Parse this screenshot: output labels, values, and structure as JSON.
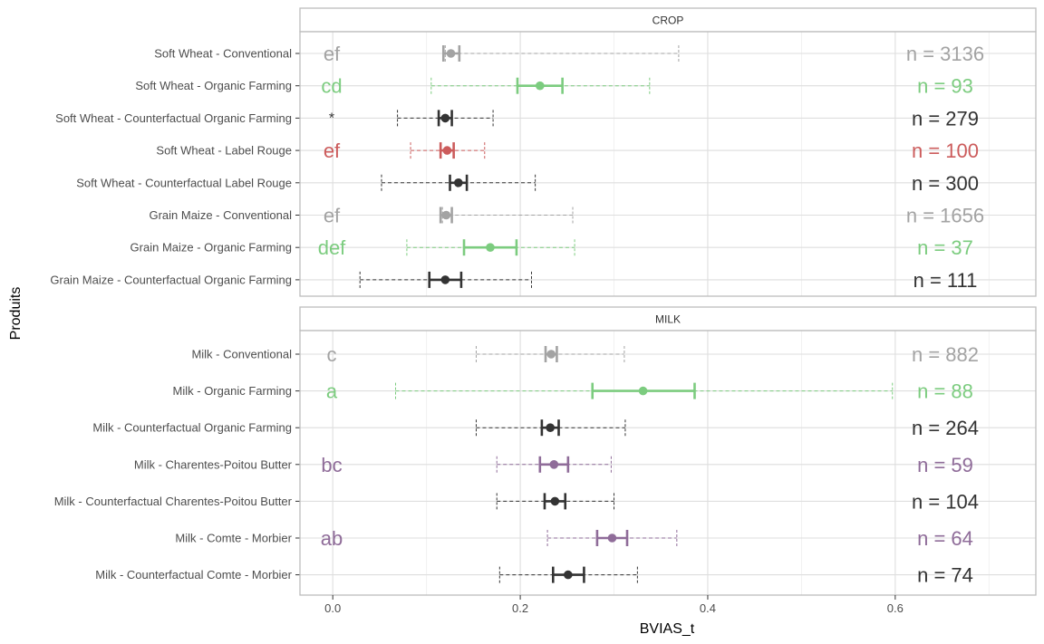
{
  "chart_data": {
    "type": "forest",
    "ylabel": "Produits",
    "xlabel": "BVIAS_t",
    "xlim": [
      -0.035,
      0.75
    ],
    "xticks": [
      0.0,
      0.2,
      0.4,
      0.6
    ],
    "xtick_labels": [
      "0.0",
      "0.2",
      "0.4",
      "0.6"
    ],
    "grid": true,
    "colors": {
      "gray": "#a3a3a3",
      "green": "#7ccc7f",
      "black": "#333333",
      "red": "#cc5c5c",
      "purple": "#8f6c99"
    },
    "panels": [
      {
        "title": "CROP",
        "rows": [
          {
            "label": "Soft Wheat - Conventional",
            "mean": 0.126,
            "ci_low": 0.118,
            "ci_high": 0.135,
            "lo": 0.12,
            "hi": 0.369,
            "letter": "ef",
            "n_label": "n = 3136",
            "color": "gray"
          },
          {
            "label": "Soft Wheat - Organic Farming",
            "mean": 0.221,
            "ci_low": 0.197,
            "ci_high": 0.245,
            "lo": 0.105,
            "hi": 0.338,
            "letter": "cd",
            "n_label": "n = 93",
            "color": "green"
          },
          {
            "label": "Soft Wheat - Counterfactual Organic Farming",
            "mean": 0.12,
            "ci_low": 0.113,
            "ci_high": 0.127,
            "lo": 0.069,
            "hi": 0.171,
            "letter": "*",
            "n_label": "n = 279",
            "color": "black"
          },
          {
            "label": "Soft Wheat - Label Rouge",
            "mean": 0.122,
            "ci_low": 0.115,
            "ci_high": 0.129,
            "lo": 0.083,
            "hi": 0.162,
            "letter": "ef",
            "n_label": "n = 100",
            "color": "red"
          },
          {
            "label": "Soft Wheat - Counterfactual Label Rouge",
            "mean": 0.134,
            "ci_low": 0.125,
            "ci_high": 0.143,
            "lo": 0.052,
            "hi": 0.216,
            "letter": "",
            "n_label": "n = 300",
            "color": "black"
          },
          {
            "label": "Grain Maize - Conventional",
            "mean": 0.121,
            "ci_low": 0.115,
            "ci_high": 0.127,
            "lo": 0.117,
            "hi": 0.256,
            "letter": "ef",
            "n_label": "n = 1656",
            "color": "gray"
          },
          {
            "label": "Grain Maize - Organic Farming",
            "mean": 0.168,
            "ci_low": 0.14,
            "ci_high": 0.196,
            "lo": 0.079,
            "hi": 0.258,
            "letter": "def",
            "n_label": "n = 37",
            "color": "green"
          },
          {
            "label": "Grain Maize - Counterfactual Organic Farming",
            "mean": 0.12,
            "ci_low": 0.103,
            "ci_high": 0.137,
            "lo": 0.029,
            "hi": 0.212,
            "letter": "",
            "n_label": "n = 111",
            "color": "black"
          }
        ]
      },
      {
        "title": "MILK",
        "rows": [
          {
            "label": "Milk - Conventional",
            "mean": 0.233,
            "ci_low": 0.227,
            "ci_high": 0.239,
            "lo": 0.153,
            "hi": 0.311,
            "letter": "c",
            "n_label": "n = 882",
            "color": "gray"
          },
          {
            "label": "Milk - Organic Farming",
            "mean": 0.331,
            "ci_low": 0.277,
            "ci_high": 0.386,
            "lo": 0.067,
            "hi": 0.597,
            "letter": "a",
            "n_label": "n = 88",
            "color": "green"
          },
          {
            "label": "Milk - Counterfactual Organic Farming",
            "mean": 0.232,
            "ci_low": 0.223,
            "ci_high": 0.241,
            "lo": 0.153,
            "hi": 0.312,
            "letter": "",
            "n_label": "n = 264",
            "color": "black"
          },
          {
            "label": "Milk - Charentes-Poitou Butter",
            "mean": 0.236,
            "ci_low": 0.221,
            "ci_high": 0.251,
            "lo": 0.175,
            "hi": 0.297,
            "letter": "bc",
            "n_label": "n = 59",
            "color": "purple"
          },
          {
            "label": "Milk - Counterfactual Charentes-Poitou Butter",
            "mean": 0.237,
            "ci_low": 0.226,
            "ci_high": 0.248,
            "lo": 0.175,
            "hi": 0.3,
            "letter": "",
            "n_label": "n = 104",
            "color": "black"
          },
          {
            "label": "Milk - Comte - Morbier",
            "mean": 0.298,
            "ci_low": 0.282,
            "ci_high": 0.314,
            "lo": 0.229,
            "hi": 0.367,
            "letter": "ab",
            "n_label": "n = 64",
            "color": "purple"
          },
          {
            "label": "Milk - Counterfactual Comte - Morbier",
            "mean": 0.251,
            "ci_low": 0.235,
            "ci_high": 0.268,
            "lo": 0.178,
            "hi": 0.325,
            "letter": "",
            "n_label": "n = 74",
            "color": "black"
          }
        ]
      }
    ]
  }
}
